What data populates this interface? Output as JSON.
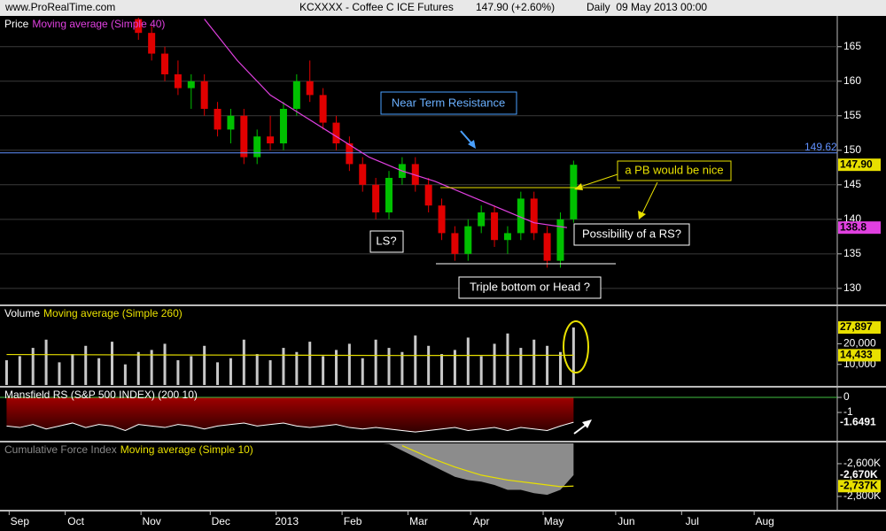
{
  "header": {
    "site": "www.ProRealTime.com",
    "instrument": "KCXXXX - Coffee C ICE Futures",
    "quote": "147.90 (+2.60%)",
    "period": "Daily  09 May 2013 00:00"
  },
  "annotations": [
    "Near Term Resistance",
    "a PB would be nice",
    "Possibility of a RS?",
    "LS?",
    "Triple bottom or Head ?"
  ],
  "chart_data": [
    {
      "type": "candlestick",
      "title": "Price",
      "subtitle": "Moving average (Simple 40)",
      "xlim": [
        -2,
        252
      ],
      "ylim": [
        127.8,
        169.2
      ],
      "yticks": [
        130,
        135,
        140,
        145,
        150,
        155,
        160,
        165
      ],
      "grid": true,
      "up_color": "#00c000",
      "down_color": "#e00000",
      "x": [
        40,
        44,
        48,
        52,
        56,
        60,
        64,
        68,
        72,
        76,
        80,
        84,
        88,
        92,
        96,
        100,
        104,
        108,
        112,
        116,
        120,
        124,
        128,
        132,
        136,
        140,
        144,
        148,
        152,
        156,
        160,
        164,
        168,
        172
      ],
      "open": [
        169,
        167,
        164,
        161,
        159,
        160,
        156,
        153,
        155,
        149,
        152,
        151,
        156,
        160,
        158,
        154,
        151,
        148,
        145,
        141,
        146,
        148,
        145,
        142,
        138,
        135,
        139,
        141,
        137,
        138,
        143,
        138,
        134,
        140
      ],
      "high": [
        170,
        168,
        165,
        163,
        161,
        161,
        157,
        156,
        156,
        153,
        155,
        157,
        161,
        163,
        159,
        155,
        152,
        149,
        146,
        147,
        149,
        149,
        146,
        143,
        139,
        140,
        142,
        142,
        139,
        144,
        144,
        139,
        141,
        148.5
      ],
      "low": [
        166,
        163,
        160,
        158,
        156,
        155,
        152,
        151,
        148,
        148,
        150,
        150,
        155,
        157,
        153,
        150,
        147,
        144,
        140,
        140,
        145,
        144,
        141,
        137,
        134,
        134,
        138,
        136,
        135,
        137,
        137,
        133,
        133,
        139.5
      ],
      "close": [
        167,
        164,
        161,
        159,
        160,
        156,
        153,
        155,
        149,
        152,
        151,
        156,
        160,
        158,
        154,
        151,
        148,
        145,
        141,
        146,
        148,
        145,
        142,
        138,
        135,
        139,
        141,
        137,
        138,
        143,
        138,
        134,
        140,
        147.9
      ],
      "last_label": "147.90",
      "series": [
        {
          "name": "Moving average (Simple 40)",
          "color": "#e040e0",
          "x": [
            60,
            70,
            80,
            90,
            100,
            110,
            120,
            130,
            140,
            150,
            160,
            170
          ],
          "values": [
            169,
            163,
            158,
            155,
            152,
            149,
            147,
            145.5,
            143.5,
            141.5,
            139.5,
            138.8
          ]
        }
      ],
      "reference_line": {
        "value": 149.62,
        "color": "#6090ff"
      }
    },
    {
      "type": "bar",
      "title": "Volume",
      "subtitle": "Moving average (Simple 260)",
      "xlim": [
        -2,
        252
      ],
      "ylim": [
        0,
        37800
      ],
      "yticks": [
        {
          "value": 10000,
          "label": "10,000"
        },
        {
          "value": 20000,
          "label": "20,000"
        }
      ],
      "color": "#c8c8c8",
      "x": [
        0,
        4,
        8,
        12,
        16,
        20,
        24,
        28,
        32,
        36,
        40,
        44,
        48,
        52,
        56,
        60,
        64,
        68,
        72,
        76,
        80,
        84,
        88,
        92,
        96,
        100,
        104,
        108,
        112,
        116,
        120,
        124,
        128,
        132,
        136,
        140,
        144,
        148,
        152,
        156,
        160,
        164,
        168,
        172
      ],
      "values": [
        12000,
        14000,
        18000,
        22000,
        11000,
        15000,
        19000,
        13000,
        21000,
        10000,
        16000,
        17000,
        20000,
        12000,
        14000,
        19000,
        11000,
        13000,
        22000,
        15000,
        12000,
        18000,
        16000,
        21000,
        14000,
        17000,
        20000,
        13000,
        22000,
        18000,
        16000,
        24000,
        19000,
        15000,
        17000,
        23000,
        14000,
        20000,
        25000,
        18000,
        22000,
        19000,
        16000,
        27897
      ],
      "last_label": "27,897",
      "series": [
        {
          "name": "Moving average (Simple 260)",
          "color": "#e8e000",
          "x": [
            0,
            40,
            80,
            120,
            160,
            172
          ],
          "values": [
            14800,
            14600,
            14500,
            14300,
            14400,
            14433
          ],
          "last_label": "14,433"
        }
      ]
    },
    {
      "type": "area",
      "title": "Mansfield RS (S&P 500 INDEX) (200 10)",
      "xlim": [
        -2,
        252
      ],
      "ylim": [
        -2.82,
        0.59
      ],
      "yticks": [
        0,
        -1
      ],
      "color": "#ffffff",
      "fill": "#7a0000",
      "zero_color": "#40c040",
      "x": [
        0,
        4,
        8,
        12,
        16,
        20,
        24,
        28,
        32,
        36,
        40,
        44,
        48,
        52,
        56,
        60,
        64,
        68,
        72,
        76,
        80,
        84,
        88,
        92,
        96,
        100,
        104,
        108,
        112,
        116,
        120,
        124,
        128,
        132,
        136,
        140,
        144,
        148,
        152,
        156,
        160,
        164,
        168,
        172
      ],
      "values": [
        -1.9,
        -2.0,
        -1.8,
        -2.1,
        -1.9,
        -1.7,
        -2.0,
        -1.8,
        -1.9,
        -2.2,
        -1.8,
        -1.9,
        -2.0,
        -1.8,
        -1.9,
        -2.1,
        -1.9,
        -1.8,
        -1.7,
        -1.9,
        -1.8,
        -1.7,
        -1.9,
        -2.0,
        -1.9,
        -1.8,
        -2.0,
        -2.1,
        -2.0,
        -2.1,
        -2.2,
        -2.3,
        -2.2,
        -2.1,
        -2.0,
        -2.2,
        -2.1,
        -2.0,
        -2.2,
        -2.0,
        -2.1,
        -2.2,
        -1.9,
        -1.6491
      ]
    },
    {
      "type": "line",
      "title": "Cumulative Force Index",
      "subtitle": "Moving average (Simple 10)",
      "xlim": [
        -2,
        252
      ],
      "ylim": [
        -2876,
        -2476
      ],
      "yticks": [
        {
          "value": -2600,
          "label": "-2,600K"
        },
        {
          "value": -2800,
          "label": "-2,800K"
        }
      ],
      "color": "#8c8c8c",
      "x": [
        114,
        116,
        120,
        124,
        128,
        132,
        136,
        140,
        144,
        148,
        152,
        156,
        160,
        164,
        168,
        172
      ],
      "values": [
        -2476,
        -2480,
        -2520,
        -2560,
        -2600,
        -2640,
        -2680,
        -2700,
        -2710,
        -2730,
        -2760,
        -2760,
        -2780,
        -2790,
        -2760,
        -2670
      ],
      "last_label": "-2,670K",
      "series": [
        {
          "name": "Moving average (Simple 10)",
          "color": "#e8e000",
          "x": [
            120,
            128,
            136,
            144,
            152,
            160,
            168,
            172
          ],
          "values": [
            -2490,
            -2560,
            -2620,
            -2670,
            -2700,
            -2720,
            -2740,
            -2737
          ],
          "last_label": "-2,737K"
        }
      ],
      "xticks": [
        {
          "value": 4,
          "label": "Sep"
        },
        {
          "value": 21,
          "label": "Oct"
        },
        {
          "value": 44,
          "label": "Nov"
        },
        {
          "value": 65,
          "label": "Dec"
        },
        {
          "value": 85,
          "label": "2013"
        },
        {
          "value": 105,
          "label": "Feb"
        },
        {
          "value": 125,
          "label": "Mar"
        },
        {
          "value": 144,
          "label": "Apr"
        },
        {
          "value": 166,
          "label": "May"
        },
        {
          "value": 188,
          "label": "Jun"
        },
        {
          "value": 208,
          "label": "Jul"
        },
        {
          "value": 230,
          "label": "Aug"
        }
      ]
    }
  ]
}
